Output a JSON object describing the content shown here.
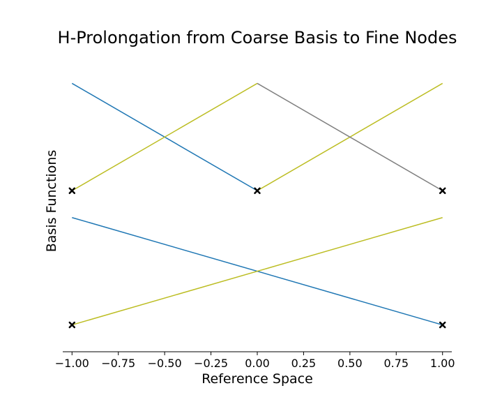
{
  "chart_data": {
    "type": "line",
    "title": "H-Prolongation from Coarse Basis to Fine Nodes",
    "xlabel": "Reference Space",
    "ylabel": "Basis Functions",
    "xlim": [
      -1.05,
      1.05
    ],
    "ylim": [
      -0.2,
      2.0
    ],
    "x_ticks": [
      -1.0,
      -0.75,
      -0.5,
      -0.25,
      0.0,
      0.25,
      0.5,
      0.75,
      1.0
    ],
    "x_tick_labels": [
      "−1.00",
      "−0.75",
      "−0.50",
      "−0.25",
      "0.00",
      "0.25",
      "0.50",
      "0.75",
      "1.00"
    ],
    "grid": false,
    "y_axis_visible": false,
    "series": [
      {
        "color": "#1f77b4",
        "points": [
          [
            -1.0,
            1.8
          ],
          [
            0.0,
            1.0
          ]
        ]
      },
      {
        "color": "#bcbd22",
        "points": [
          [
            -1.0,
            1.0
          ],
          [
            0.0,
            1.8
          ]
        ]
      },
      {
        "color": "#bcbd22",
        "points": [
          [
            0.0,
            1.0
          ],
          [
            1.0,
            1.8
          ]
        ]
      },
      {
        "color": "#7f7f7f",
        "points": [
          [
            0.0,
            1.8
          ],
          [
            1.0,
            1.0
          ]
        ]
      },
      {
        "color": "#1f77b4",
        "points": [
          [
            -1.0,
            0.8
          ],
          [
            1.0,
            0.0
          ]
        ]
      },
      {
        "color": "#bcbd22",
        "points": [
          [
            -1.0,
            0.0
          ],
          [
            1.0,
            0.8
          ]
        ]
      }
    ],
    "markers": {
      "symbol": "x",
      "color": "#000000",
      "points": [
        [
          -1.0,
          1.0
        ],
        [
          0.0,
          1.0
        ],
        [
          1.0,
          1.0
        ],
        [
          -1.0,
          0.0
        ],
        [
          1.0,
          0.0
        ]
      ]
    }
  }
}
